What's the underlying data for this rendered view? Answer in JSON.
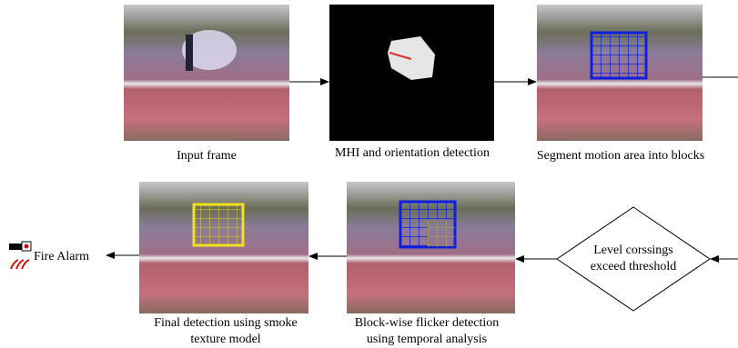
{
  "stages": [
    {
      "caption": [
        "Input frame"
      ]
    },
    {
      "caption": [
        "MHI and orientation detection"
      ]
    },
    {
      "caption": [
        "Segment motion area into blocks"
      ]
    },
    {
      "caption": [
        "Block-wise flicker detection",
        "using temporal analysis"
      ]
    },
    {
      "caption": [
        "Final detection using smoke",
        "texture model"
      ]
    }
  ],
  "decision": {
    "label": [
      "Level corssings",
      "exceed threshold"
    ]
  },
  "output": {
    "label": "Fire Alarm"
  }
}
